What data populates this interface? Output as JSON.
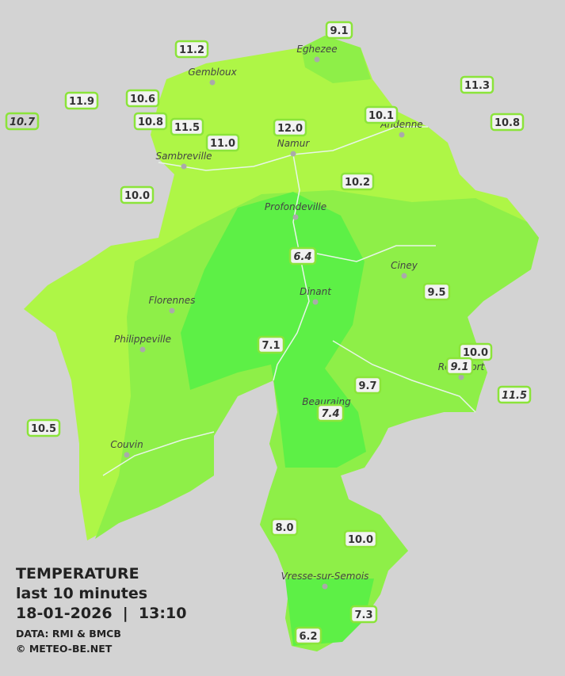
{
  "towns": [
    "Eghezee",
    "Gembloux",
    "Andenne",
    "Namur",
    "Sambreville",
    "Profondeville",
    "Ciney",
    "Dinant",
    "Florennes",
    "Philippeville",
    "Rochefort",
    "Beauraing",
    "Couvin",
    "Vresse-sur-Semois"
  ],
  "stations": [
    {
      "label": "9.1",
      "italic": false
    },
    {
      "label": "11.2",
      "italic": false
    },
    {
      "label": "11.3",
      "italic": false
    },
    {
      "label": "11.9",
      "italic": false
    },
    {
      "label": "10.6",
      "italic": false
    },
    {
      "label": "10.7",
      "italic": true
    },
    {
      "label": "10.1",
      "italic": false
    },
    {
      "label": "10.8",
      "italic": false
    },
    {
      "label": "11.5",
      "italic": false
    },
    {
      "label": "12.0",
      "italic": false
    },
    {
      "label": "10.8",
      "italic": false
    },
    {
      "label": "11.0",
      "italic": false
    },
    {
      "label": "10.2",
      "italic": false
    },
    {
      "label": "10.0",
      "italic": false
    },
    {
      "label": "6.4",
      "italic": true
    },
    {
      "label": "9.5",
      "italic": false
    },
    {
      "label": "7.1",
      "italic": false
    },
    {
      "label": "10.0",
      "italic": false
    },
    {
      "label": "9.1",
      "italic": true
    },
    {
      "label": "9.7",
      "italic": false
    },
    {
      "label": "11.5",
      "italic": true
    },
    {
      "label": "7.4",
      "italic": true
    },
    {
      "label": "10.5",
      "italic": false
    },
    {
      "label": "8.0",
      "italic": false
    },
    {
      "label": "10.0",
      "italic": false
    },
    {
      "label": "7.3",
      "italic": false
    },
    {
      "label": "6.2",
      "italic": false
    }
  ],
  "footer": {
    "title": "TEMPERATURE",
    "period": "last 10 minutes",
    "datetime": "18-01-2026  |  13:10",
    "source": "DATA: RMI & BMCB",
    "copyright": "© METEO-BE.NET"
  }
}
